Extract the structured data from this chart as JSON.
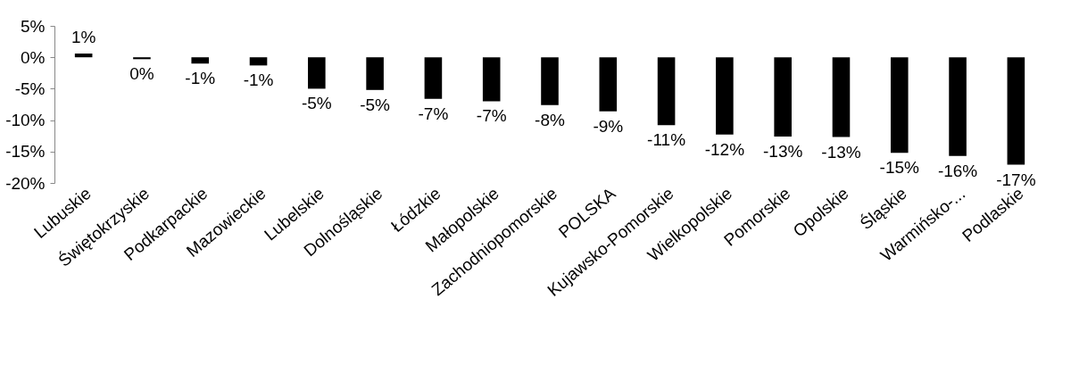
{
  "chart_data": {
    "type": "bar",
    "categories": [
      "Lubuskie",
      "Świętokrzyskie",
      "Podkarpackie",
      "Mazowieckie",
      "Lubelskie",
      "Dolnośląskie",
      "Łódzkie",
      "Małopolskie",
      "Zachodniopomorskie",
      "POLSKA",
      "Kujawsko-Pomorskie",
      "Wielkopolskie",
      "Pomorskie",
      "Opolskie",
      "Śląskie",
      "Warmińsko-...",
      "Podlaskie"
    ],
    "values": [
      0.6,
      -0.3,
      -1.0,
      -1.3,
      -5.0,
      -5.2,
      -6.6,
      -7.0,
      -7.6,
      -8.6,
      -10.8,
      -12.3,
      -12.6,
      -12.7,
      -15.2,
      -15.7,
      -17.1
    ],
    "value_labels": [
      "1%",
      "0%",
      "-1%",
      "-1%",
      "-5%",
      "-5%",
      "-7%",
      "-7%",
      "-8%",
      "-9%",
      "-11%",
      "-12%",
      "-13%",
      "-13%",
      "-15%",
      "-16%",
      "-17%"
    ],
    "color": "#000000",
    "ylim": [
      -20,
      5
    ],
    "yticks": [
      {
        "value": 5,
        "label": "5%"
      },
      {
        "value": 0,
        "label": "0%"
      },
      {
        "value": -5,
        "label": "-5%"
      },
      {
        "value": -10,
        "label": "-10%"
      },
      {
        "value": -15,
        "label": "-15%"
      },
      {
        "value": -20,
        "label": "-20%"
      }
    ],
    "grid": false
  }
}
